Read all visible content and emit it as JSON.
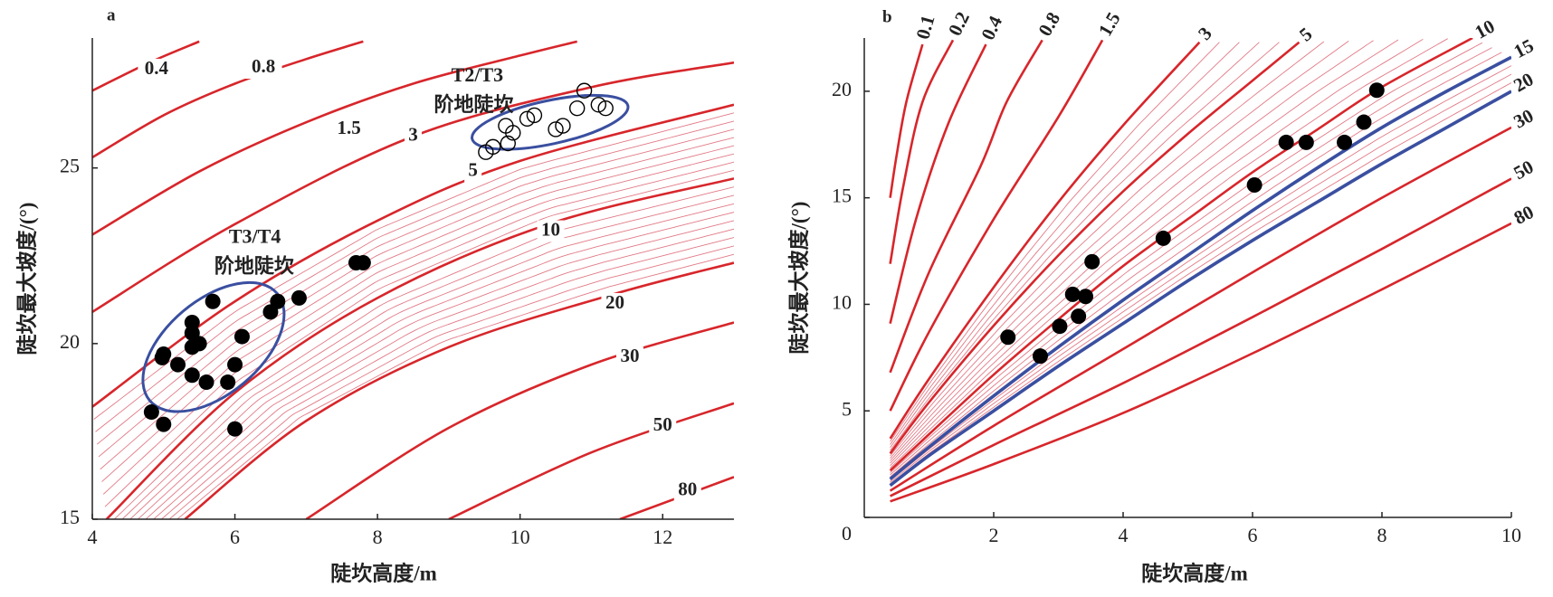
{
  "chart_data": [
    {
      "type": "scatter",
      "panel": "a",
      "xlabel": "陡坎高度/m",
      "ylabel": "陡坎最大坡度/(°)",
      "xlim": [
        4,
        13
      ],
      "ylim": [
        15,
        28.7
      ],
      "xticks": [
        4,
        6,
        8,
        10,
        12
      ],
      "yticks": [
        15,
        20,
        25
      ],
      "annotations": [
        "T2/T3",
        "阶地陡坎",
        "T3/T4",
        "阶地陡坎"
      ],
      "contours": [
        {
          "name": "0.4",
          "color": "#d7262b",
          "x": [
            4,
            4.8,
            5.5
          ],
          "y": [
            27.2,
            28.0,
            28.6
          ]
        },
        {
          "name": "0.8",
          "color": "#d7262b",
          "x": [
            4,
            5,
            6,
            7,
            7.8
          ],
          "y": [
            25.3,
            26.5,
            27.4,
            28.1,
            28.6
          ]
        },
        {
          "name": "1.5",
          "color": "#d7262b",
          "x": [
            4,
            5.5,
            7,
            8.5,
            10,
            10.8
          ],
          "y": [
            23.1,
            24.9,
            26.3,
            27.4,
            28.2,
            28.6
          ]
        },
        {
          "name": "3",
          "color": "#d7262b",
          "x": [
            4,
            6,
            8.5,
            11,
            13
          ],
          "y": [
            20.9,
            23.4,
            25.9,
            27.3,
            28.0
          ]
        },
        {
          "name": "5",
          "color": "#d7262b",
          "x": [
            4,
            6,
            8,
            10,
            13
          ],
          "y": [
            18.2,
            21.2,
            23.5,
            25.2,
            26.8
          ]
        },
        {
          "name": "10",
          "color": "#d7262b",
          "x": [
            4.2,
            6,
            8,
            10.4,
            13
          ],
          "y": [
            15,
            18.6,
            21.3,
            23.4,
            24.7
          ]
        },
        {
          "name": "20",
          "color": "#d7262b",
          "x": [
            5.3,
            7,
            9,
            11.3,
            13
          ],
          "y": [
            15,
            17.8,
            19.9,
            21.4,
            22.3
          ]
        },
        {
          "name": "30",
          "color": "#d7262b",
          "x": [
            7,
            9,
            11,
            13
          ],
          "y": [
            15,
            17.6,
            19.4,
            20.6
          ]
        },
        {
          "name": "50",
          "color": "#d7262b",
          "x": [
            9,
            11,
            13
          ],
          "y": [
            15,
            16.9,
            18.3
          ]
        },
        {
          "name": "80",
          "color": "#d7262b",
          "x": [
            11.4,
            13
          ],
          "y": [
            15,
            16.2
          ]
        }
      ],
      "series": [
        {
          "marker": "filled",
          "color": "#000000",
          "x": [
            4.83,
            5.0,
            5.0,
            6.0,
            5.69,
            6.1,
            6.5,
            6.6,
            6.9,
            7.7,
            7.8,
            5.4,
            5.4,
            5.4,
            5.5,
            5.2,
            5.4,
            5.6,
            5.9,
            6.0,
            4.98
          ],
          "y": [
            18.05,
            17.7,
            19.7,
            17.57,
            21.2,
            20.2,
            20.9,
            21.2,
            21.3,
            22.3,
            22.3,
            20.6,
            20.3,
            19.9,
            20.0,
            19.4,
            19.1,
            18.9,
            18.9,
            19.4,
            19.6
          ]
        },
        {
          "marker": "open",
          "color": "#000000",
          "x": [
            9.52,
            9.62,
            9.8,
            9.9,
            9.83,
            10.1,
            10.2,
            10.5,
            10.6,
            10.8,
            10.9,
            11.1,
            11.2
          ],
          "y": [
            25.45,
            25.6,
            26.2,
            26.0,
            25.7,
            26.4,
            26.5,
            26.1,
            26.2,
            26.7,
            27.2,
            26.8,
            26.7
          ]
        }
      ]
    },
    {
      "type": "scatter",
      "panel": "b",
      "xlabel": "陡坎高度/m",
      "ylabel": "陡坎最大坡度/(°)",
      "xlim": [
        0,
        10
      ],
      "ylim": [
        0,
        22.5
      ],
      "xticks": [
        2,
        4,
        6,
        8,
        10
      ],
      "yticks": [
        0,
        5,
        10,
        15,
        20
      ],
      "contours": [
        {
          "name": "0.1",
          "color": "#d7262b",
          "x": [
            0.4,
            0.5,
            0.65,
            0.9
          ],
          "y": [
            15,
            17,
            19.5,
            22.2
          ]
        },
        {
          "name": "0.2",
          "color": "#d7262b",
          "x": [
            0.4,
            0.6,
            0.9,
            1.37
          ],
          "y": [
            11.9,
            15.5,
            19.5,
            22.4
          ]
        },
        {
          "name": "0.4",
          "color": "#d7262b",
          "x": [
            0.4,
            0.8,
            1.3,
            1.88
          ],
          "y": [
            9.1,
            14,
            18.5,
            22.2
          ]
        },
        {
          "name": "0.8",
          "color": "#d7262b",
          "x": [
            0.4,
            1,
            1.8,
            2.2,
            2.75
          ],
          "y": [
            6.8,
            11.5,
            16.5,
            19.5,
            22.4
          ]
        },
        {
          "name": "1.5",
          "color": "#d7262b",
          "x": [
            0.4,
            1,
            2,
            3,
            3.68
          ],
          "y": [
            5.0,
            8.7,
            14,
            18.8,
            22.4
          ]
        },
        {
          "name": "3",
          "color": "#d7262b",
          "x": [
            0.4,
            1,
            2,
            3,
            4,
            5.18
          ],
          "y": [
            3.7,
            6.5,
            10.8,
            14.8,
            18.4,
            22.3
          ]
        },
        {
          "name": "5",
          "color": "#d7262b",
          "x": [
            0.4,
            1,
            2,
            3,
            4,
            5,
            6,
            6.72
          ],
          "y": [
            3.0,
            5.4,
            9.0,
            12.3,
            15.3,
            18,
            20.5,
            22.3
          ]
        },
        {
          "name": "10",
          "color": "#d7262b",
          "x": [
            0.4,
            1,
            2,
            3,
            4,
            5,
            6,
            7,
            8,
            9.4
          ],
          "y": [
            2.2,
            3.9,
            6.7,
            9.3,
            11.8,
            14,
            16.2,
            18.2,
            20.2,
            22.5
          ]
        },
        {
          "name": "15",
          "color": "#3a4fa0",
          "x": [
            0.4,
            1,
            2,
            3,
            4,
            5,
            6,
            7,
            8,
            9,
            10
          ],
          "y": [
            1.8,
            3.3,
            5.7,
            8.0,
            10.2,
            12.3,
            14.4,
            16.4,
            18.3,
            20,
            21.6
          ]
        },
        {
          "name": "20",
          "color": "#3a4fa0",
          "x": [
            0.4,
            1,
            2,
            3,
            4,
            5,
            6,
            7,
            8,
            9,
            10
          ],
          "y": [
            1.5,
            2.9,
            5.0,
            7.1,
            9.1,
            11.1,
            13.0,
            14.8,
            16.6,
            18.3,
            20.0
          ]
        },
        {
          "name": "30",
          "color": "#d7262b",
          "x": [
            0.4,
            2,
            4,
            6,
            8,
            10
          ],
          "y": [
            1.25,
            4.3,
            7.9,
            11.5,
            15.0,
            18.3
          ]
        },
        {
          "name": "50",
          "color": "#d7262b",
          "x": [
            0.4,
            2,
            4,
            6,
            8,
            10
          ],
          "y": [
            1.0,
            3.4,
            6.3,
            9.4,
            12.6,
            15.9
          ]
        },
        {
          "name": "80",
          "color": "#d7262b",
          "x": [
            0.4,
            2,
            4,
            6,
            8,
            10
          ],
          "y": [
            0.75,
            2.5,
            4.9,
            7.7,
            10.7,
            13.8
          ]
        }
      ],
      "series": [
        {
          "marker": "filled",
          "color": "#000000",
          "x": [
            2.22,
            2.72,
            3.02,
            3.22,
            3.42,
            3.31,
            3.52,
            4.62,
            6.03,
            6.52,
            6.83,
            7.42,
            7.72,
            7.92
          ],
          "y": [
            8.46,
            7.57,
            8.97,
            10.47,
            10.37,
            9.44,
            12.0,
            13.1,
            15.6,
            17.6,
            17.6,
            17.6,
            18.55,
            20.05
          ]
        }
      ]
    }
  ]
}
